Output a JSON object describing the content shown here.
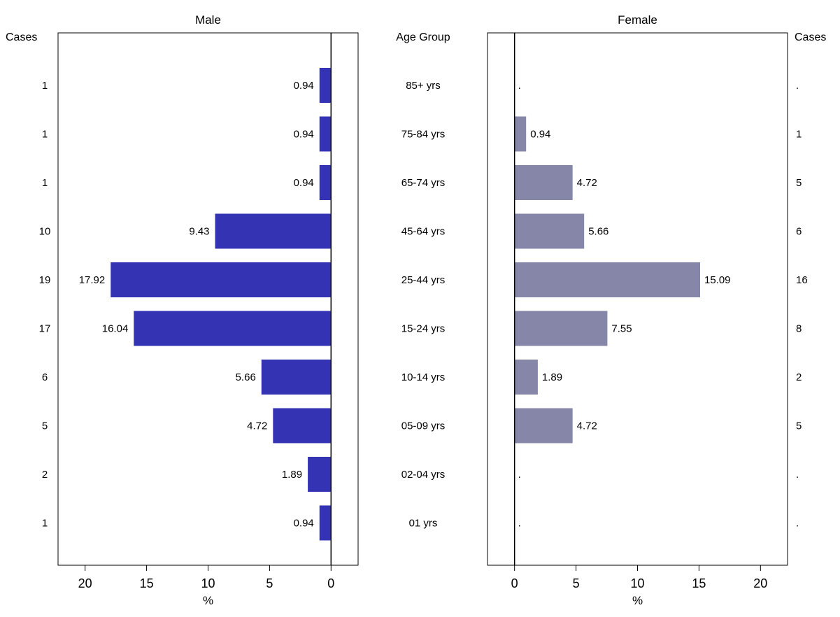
{
  "chart_data": {
    "type": "bar",
    "orientation": "horizontal",
    "layout": "population-pyramid",
    "age_group_label": "Age Group",
    "cases_label": "Cases",
    "categories": [
      "85+ yrs",
      "75-84 yrs",
      "65-74 yrs",
      "45-64 yrs",
      "25-44 yrs",
      "15-24 yrs",
      "10-14 yrs",
      "05-09 yrs",
      "02-04 yrs",
      "01 yrs"
    ],
    "xlim": [
      -2.2,
      22.2
    ],
    "x_ticks": [
      0,
      5,
      10,
      15,
      20
    ],
    "x_tick_labels": [
      "0",
      "5",
      "10",
      "15",
      "20"
    ],
    "grid": false,
    "panels": [
      {
        "title": "Male",
        "xlabel": "%",
        "direction": "leftward",
        "color": "#3333b3",
        "values": [
          0.94,
          0.94,
          0.94,
          9.43,
          17.92,
          16.04,
          5.66,
          4.72,
          1.89,
          0.94
        ],
        "value_labels": [
          "0.94",
          "0.94",
          "0.94",
          "9.43",
          "17.92",
          "16.04",
          "5.66",
          "4.72",
          "1.89",
          "0.94"
        ],
        "cases": [
          "1",
          "1",
          "1",
          "10",
          "19",
          "17",
          "6",
          "5",
          "2",
          "1"
        ]
      },
      {
        "title": "Female",
        "xlabel": "%",
        "direction": "rightward",
        "color": "#8686a8",
        "values": [
          null,
          0.94,
          4.72,
          5.66,
          15.09,
          7.55,
          1.89,
          4.72,
          null,
          null
        ],
        "value_labels": [
          ".",
          "0.94",
          "4.72",
          "5.66",
          "15.09",
          "7.55",
          "1.89",
          "4.72",
          ".",
          "."
        ],
        "cases": [
          ".",
          "1",
          "5",
          "6",
          "16",
          "8",
          "2",
          "5",
          ".",
          "."
        ]
      }
    ]
  }
}
